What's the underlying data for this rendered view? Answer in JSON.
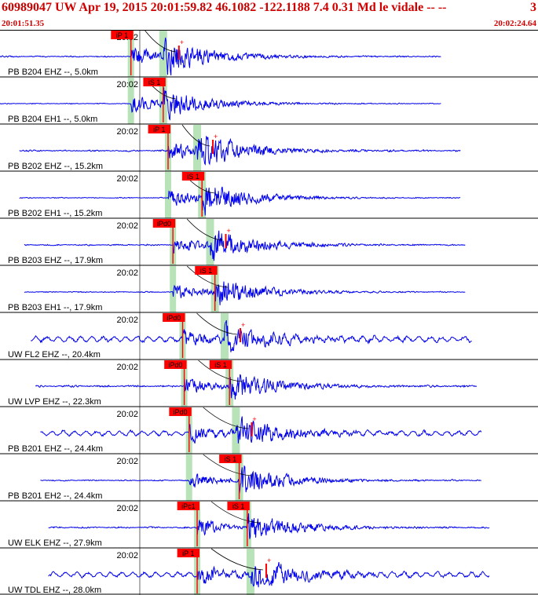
{
  "header": {
    "title": "60989047 UW Apr 19, 2015 20:01:59.82    46.1082 -122.1188  7.4 0.31 Md le vidale -- --",
    "count": "3",
    "time_start": "20:01:51.35",
    "time_end": "20:02:24.64"
  },
  "colors": {
    "trace": "#0000ee",
    "pick": "#ff0000",
    "window": "#b8e2b8",
    "text": "#000000",
    "header_text": "#d00000"
  },
  "chart_data": {
    "type": "seismogram",
    "time_range": [
      "20:01:51.35",
      "20:02:24.64"
    ],
    "minute_label": "20:02",
    "traces": [
      {
        "label": "PB B204 EHZ --, 5.0km",
        "start": 0.0,
        "end": 27.3,
        "noise": 0.22,
        "p_label": "iP 1",
        "p_time": 8.1,
        "s_label": "",
        "s_time": 10.1,
        "amp": 1.0
      },
      {
        "label": "PB B204 EH1 --, 5.0km",
        "start": 0.0,
        "end": 27.3,
        "noise": 0.15,
        "p_label": "",
        "p_time": 8.1,
        "s_label": "iS 1",
        "s_time": 10.1,
        "amp": 0.8
      },
      {
        "label": "PB B202 EHZ --, 15.2km",
        "start": 1.2,
        "end": 28.5,
        "noise": 0.25,
        "p_label": "iP 1",
        "p_time": 10.4,
        "s_label": "",
        "s_time": 12.2,
        "amp": 1.0
      },
      {
        "label": "PB B202 EH1 --, 15.2km",
        "start": 1.2,
        "end": 28.5,
        "noise": 0.15,
        "p_label": "",
        "p_time": 10.4,
        "s_label": "iS 1",
        "s_time": 12.5,
        "amp": 0.9
      },
      {
        "label": "PB B203 EHZ --, 17.9km",
        "start": 1.5,
        "end": 28.8,
        "noise": 0.22,
        "p_label": "iPd0",
        "p_time": 10.7,
        "s_label": "",
        "s_time": 13.0,
        "amp": 0.9
      },
      {
        "label": "PB B203 EH1 --, 17.9km",
        "start": 1.5,
        "end": 28.8,
        "noise": 0.18,
        "p_label": "",
        "p_time": 10.7,
        "s_label": "iS 1",
        "s_time": 13.3,
        "amp": 0.8
      },
      {
        "label": "UW FL2 EHZ --, 20.4km",
        "start": 1.9,
        "end": 29.2,
        "noise": 0.45,
        "p_label": "iPd0",
        "p_time": 11.3,
        "s_label": "",
        "s_time": 13.9,
        "amp": 0.8
      },
      {
        "label": "UW LVP EHZ --, 22.3km",
        "start": 2.2,
        "end": 29.5,
        "noise": 0.3,
        "p_label": "iPd0",
        "p_time": 11.4,
        "s_label": "iS 1",
        "s_time": 14.2,
        "amp": 0.8
      },
      {
        "label": "PB B201 EHZ --, 24.4km",
        "start": 2.5,
        "end": 29.8,
        "noise": 0.4,
        "p_label": "iPd0",
        "p_time": 11.7,
        "s_label": "",
        "s_time": 14.6,
        "amp": 0.8
      },
      {
        "label": "PB B201 EH2 --, 24.4km",
        "start": 2.5,
        "end": 29.8,
        "noise": 0.2,
        "p_label": "",
        "p_time": 11.7,
        "s_label": "iS 1",
        "s_time": 14.8,
        "amp": 0.8
      },
      {
        "label": "UW ELK EHZ --, 27.9km",
        "start": 3.0,
        "end": 30.3,
        "noise": 0.25,
        "p_label": "iPc1",
        "p_time": 12.2,
        "s_label": "iS 1",
        "s_time": 15.3,
        "amp": 0.8
      },
      {
        "label": "UW TDL EHZ --, 28.0km",
        "start": 3.0,
        "end": 30.3,
        "noise": 0.4,
        "p_label": "iP 1",
        "p_time": 12.2,
        "s_label": "",
        "s_time": 15.5,
        "amp": 0.9
      }
    ]
  }
}
